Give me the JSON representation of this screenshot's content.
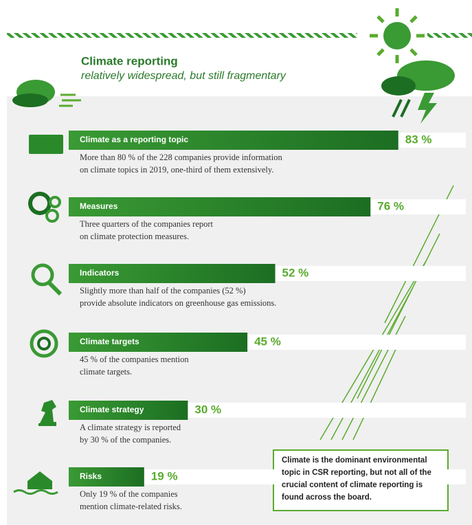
{
  "chart_data": {
    "type": "hbar",
    "title": "Climate reporting",
    "subtitle": "relatively widespread, but still fragmentary",
    "categories": [
      "Climate as a reporting topic",
      "Measures",
      "Indicators",
      "Climate targets",
      "Climate strategy",
      "Risks"
    ],
    "values": [
      83,
      76,
      52,
      45,
      30,
      19
    ],
    "value_labels": [
      "83 %",
      "76 %",
      "52 %",
      "45 %",
      "30 %",
      "19 %"
    ],
    "descriptions": [
      [
        "More than 80 % of the 228 companies provide information",
        "on climate topics in 2019, one-third of them extensively."
      ],
      [
        "Three quarters of the companies report",
        "on climate protection measures."
      ],
      [
        "Slightly more than half of the companies (52 %)",
        "provide absolute indicators on greenhouse gas emissions."
      ],
      [
        "45 % of the companies mention",
        "climate targets."
      ],
      [
        "A climate strategy is reported",
        "by 30 % of the companies."
      ],
      [
        "Only 19 % of the companies",
        "mention climate-related risks."
      ]
    ],
    "note": [
      "Climate is the dominant environmental",
      "topic in CSR reporting, but not all of the",
      "crucial content of climate reporting is",
      "found across the board."
    ],
    "color": "#2a8a2a",
    "value_color": "#5aab2e",
    "xlim": [
      0,
      100
    ]
  }
}
